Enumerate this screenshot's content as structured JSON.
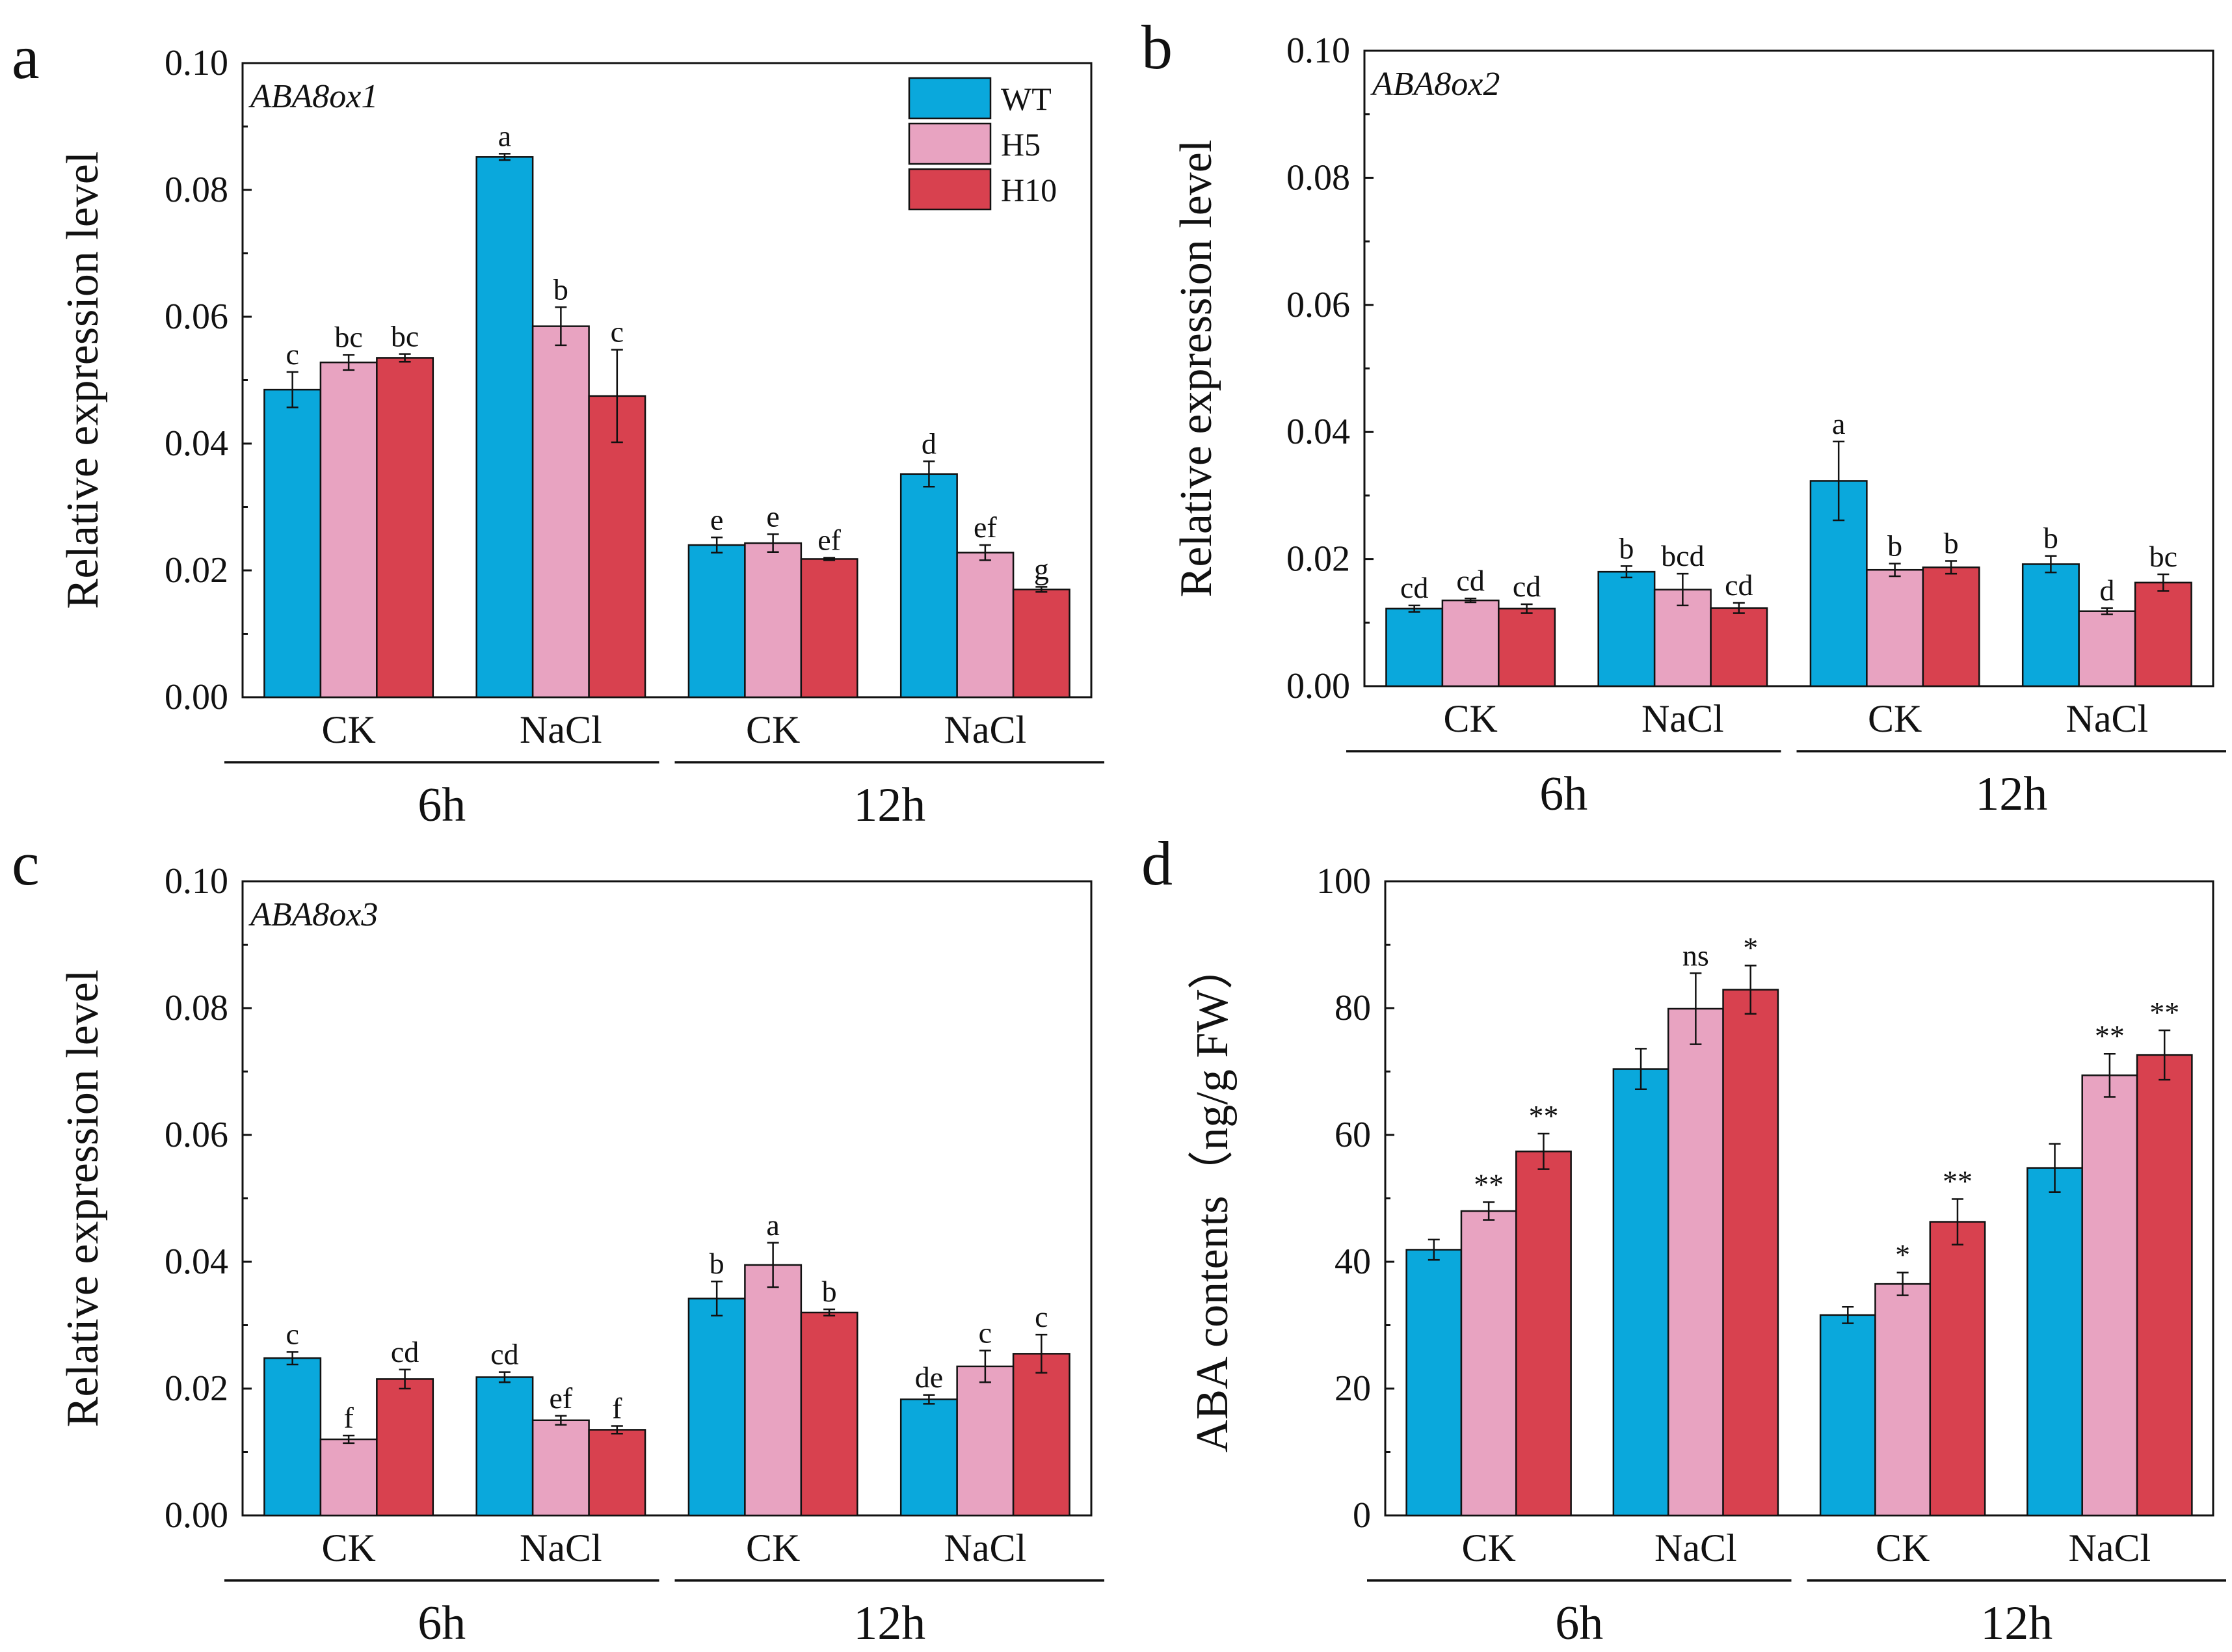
{
  "colors": {
    "WT": "#0aa8dc",
    "H5": "#e8a3c1",
    "H10": "#d8414f",
    "axis": "#111111"
  },
  "legend": [
    "WT",
    "H5",
    "H10"
  ],
  "chart_data": [
    {
      "panel": "a",
      "type": "bar",
      "gene": "ABA8ox1",
      "ylabel": "Relative expression level",
      "ylim": [
        0,
        0.1
      ],
      "yticks": [
        "0.00",
        "0.02",
        "0.04",
        "0.06",
        "0.08",
        "0.10"
      ],
      "categories": [
        "CK",
        "NaCl",
        "CK",
        "NaCl"
      ],
      "time_groups": [
        "6h",
        "12h"
      ],
      "series": [
        {
          "name": "WT",
          "values": [
            0.0485,
            0.0852,
            0.024,
            0.0352
          ],
          "errors": [
            0.0028,
            0.0005,
            0.0012,
            0.002
          ],
          "labels": [
            "c",
            "a",
            "e",
            "d"
          ]
        },
        {
          "name": "H5",
          "values": [
            0.0528,
            0.0585,
            0.0243,
            0.0228
          ],
          "errors": [
            0.0012,
            0.003,
            0.0014,
            0.0012
          ],
          "labels": [
            "bc",
            "b",
            "e",
            "ef"
          ]
        },
        {
          "name": "H10",
          "values": [
            0.0535,
            0.0475,
            0.0218,
            0.017
          ],
          "errors": [
            0.0006,
            0.0073,
            0.0002,
            0.0004
          ],
          "labels": [
            "bc",
            "c",
            "ef",
            "g"
          ]
        }
      ]
    },
    {
      "panel": "b",
      "type": "bar",
      "gene": "ABA8ox2",
      "ylabel": "Relative expression level",
      "ylim": [
        0,
        0.1
      ],
      "yticks": [
        "0.00",
        "0.02",
        "0.04",
        "0.06",
        "0.08",
        "0.10"
      ],
      "categories": [
        "CK",
        "NaCl",
        "CK",
        "NaCl"
      ],
      "time_groups": [
        "6h",
        "12h"
      ],
      "series": [
        {
          "name": "WT",
          "values": [
            0.0122,
            0.018,
            0.0323,
            0.0192
          ],
          "errors": [
            0.0005,
            0.0009,
            0.0062,
            0.0013
          ],
          "labels": [
            "cd",
            "b",
            "a",
            "b"
          ]
        },
        {
          "name": "H5",
          "values": [
            0.0135,
            0.0152,
            0.0183,
            0.0118
          ],
          "errors": [
            0.0003,
            0.0025,
            0.001,
            0.0005
          ],
          "labels": [
            "cd",
            "bcd",
            "b",
            "d"
          ]
        },
        {
          "name": "H10",
          "values": [
            0.0122,
            0.0123,
            0.0187,
            0.0163
          ],
          "errors": [
            0.0007,
            0.0008,
            0.001,
            0.0013
          ],
          "labels": [
            "cd",
            "cd",
            "b",
            "bc"
          ]
        }
      ]
    },
    {
      "panel": "c",
      "type": "bar",
      "gene": "ABA8ox3",
      "ylabel": "Relative expression level",
      "ylim": [
        0,
        0.1
      ],
      "yticks": [
        "0.00",
        "0.02",
        "0.04",
        "0.06",
        "0.08",
        "0.10"
      ],
      "categories": [
        "CK",
        "NaCl",
        "CK",
        "NaCl"
      ],
      "time_groups": [
        "6h",
        "12h"
      ],
      "series": [
        {
          "name": "WT",
          "values": [
            0.0248,
            0.0218,
            0.0342,
            0.0183
          ],
          "errors": [
            0.001,
            0.0008,
            0.0027,
            0.0007
          ],
          "labels": [
            "c",
            "cd",
            "b",
            "de"
          ]
        },
        {
          "name": "H5",
          "values": [
            0.012,
            0.015,
            0.0395,
            0.0235
          ],
          "errors": [
            0.0006,
            0.0007,
            0.0035,
            0.0025
          ],
          "labels": [
            "f",
            "ef",
            "a",
            "c"
          ]
        },
        {
          "name": "H10",
          "values": [
            0.0215,
            0.0135,
            0.032,
            0.0255
          ],
          "errors": [
            0.0015,
            0.0006,
            0.0005,
            0.003
          ],
          "labels": [
            "cd",
            "f",
            "b",
            "c"
          ]
        }
      ]
    },
    {
      "panel": "d",
      "type": "bar",
      "gene": "",
      "ylabel": "ABA contents（ng/g FW）",
      "ylim": [
        0,
        100
      ],
      "yticks": [
        "0",
        "20",
        "40",
        "60",
        "80",
        "100"
      ],
      "categories": [
        "CK",
        "NaCl",
        "CK",
        "NaCl"
      ],
      "time_groups": [
        "6h",
        "12h"
      ],
      "series": [
        {
          "name": "WT",
          "values": [
            41.9,
            70.4,
            31.6,
            54.8
          ],
          "errors": [
            1.6,
            3.2,
            1.3,
            3.8
          ],
          "labels": [
            "",
            "",
            "",
            ""
          ]
        },
        {
          "name": "H5",
          "values": [
            48.0,
            79.9,
            36.5,
            69.4
          ],
          "errors": [
            1.4,
            5.6,
            1.8,
            3.4
          ],
          "labels": [
            "**",
            "ns",
            "*",
            "**"
          ]
        },
        {
          "name": "H10",
          "values": [
            57.4,
            82.9,
            46.3,
            72.6
          ],
          "errors": [
            2.8,
            3.8,
            3.6,
            3.9
          ],
          "labels": [
            "**",
            "*",
            "**",
            "**"
          ]
        }
      ]
    }
  ]
}
